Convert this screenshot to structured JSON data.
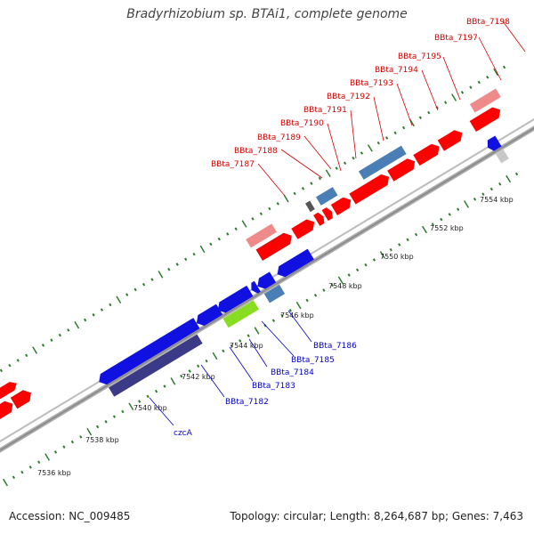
{
  "title": "Bradyrhizobium sp. BTAi1, complete genome",
  "accession": "Accession: NC_009485",
  "topology": "Topology: circular; Length: 8,264,687 bp; Genes: 7,463",
  "colors": {
    "forward_label": "#d40000",
    "reverse_label": "#0000cc",
    "backbone": "#9a9a9a",
    "ticks": "#2e7d2e",
    "red": "#ff0000",
    "blue": "#1010e0",
    "steel_blue": "#4a7fb5",
    "pink": "#ee8a8a",
    "navy": "#3b3a86",
    "cyan": "#11e3e8",
    "lime": "#88dd22",
    "gray": "#c8c8c8"
  },
  "scale": {
    "unit": "kbp",
    "labels": [
      "7536 kbp",
      "7538 kbp",
      "7540 kbp",
      "7542 kbp",
      "7544 kbp",
      "7546 kbp",
      "7548 kbp",
      "7550 kbp",
      "7552 kbp",
      "7554 kbp"
    ]
  },
  "forward_genes": [
    "BBta_7187",
    "BBta_7188",
    "BBta_7189",
    "BBta_7190",
    "BBta_7191",
    "BBta_7192",
    "BBta_7193",
    "BBta_7194",
    "BBta_7195",
    "BBta_7197",
    "BBta_7198"
  ],
  "reverse_genes": [
    "czcA",
    "BBta_7182",
    "BBta_7183",
    "BBta_7184",
    "BBta_7185",
    "BBta_7186"
  ]
}
